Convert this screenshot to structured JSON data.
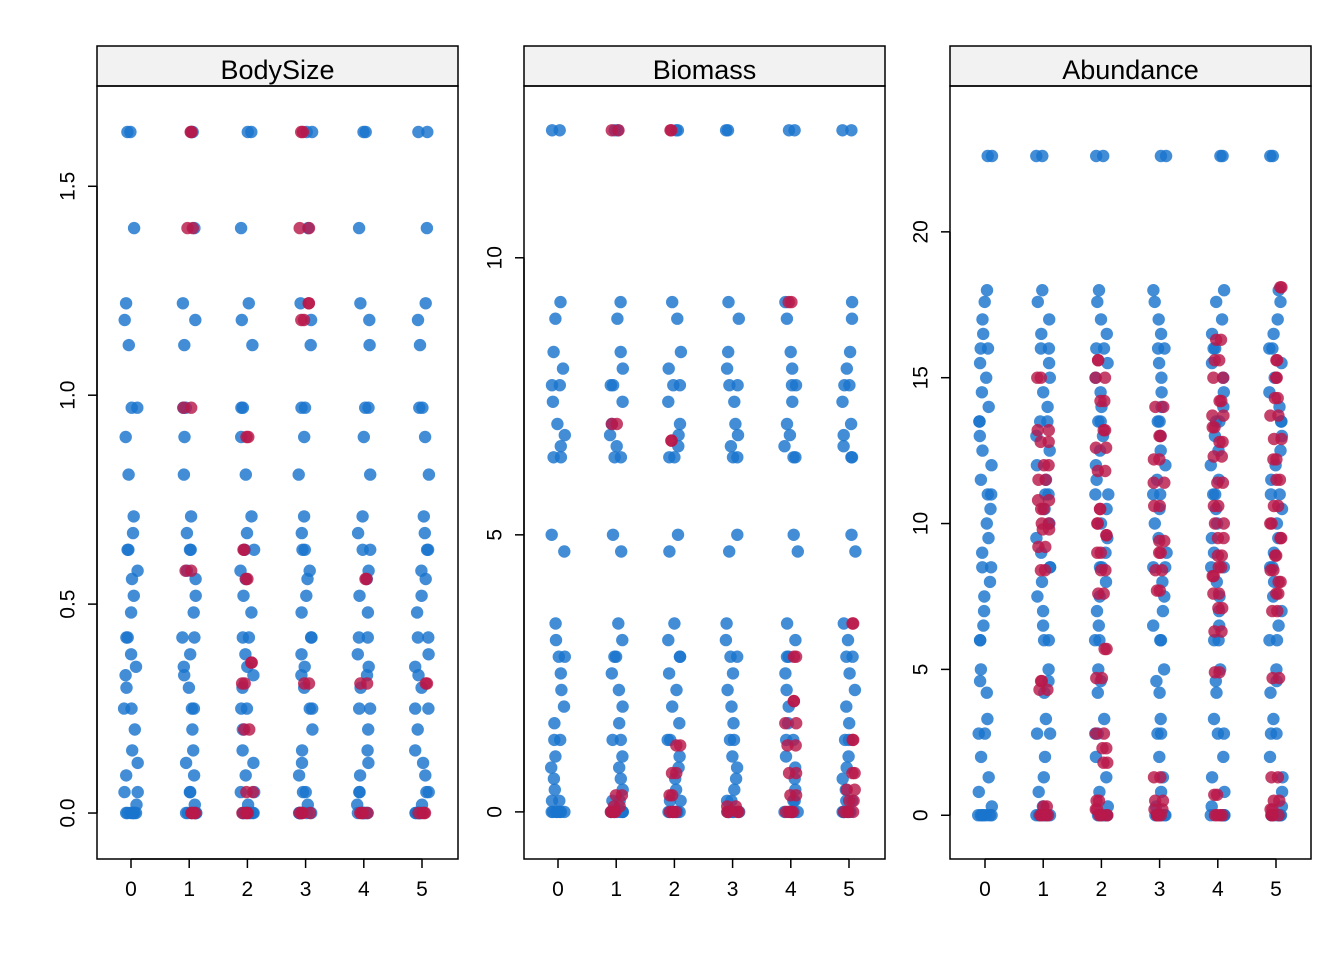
{
  "chart_data": [
    {
      "type": "scatter",
      "title": "BodySize",
      "x_ticks": [
        "0",
        "1",
        "2",
        "3",
        "4",
        "5"
      ],
      "y_ticks": [
        0.0,
        0.5,
        1.0,
        1.5
      ],
      "y_tick_labels": [
        "0.0",
        "0.5",
        "1.0",
        "1.5"
      ],
      "ylim": [
        -0.11,
        1.74
      ],
      "grid": false,
      "series": [
        {
          "color": "#1874CD",
          "levels": [
            1.63,
            1.4,
            1.22,
            1.18,
            1.12,
            0.97,
            0.9,
            0.81,
            0.71,
            0.67,
            0.63,
            0.58,
            0.56,
            0.52,
            0.48,
            0.42,
            0.38,
            0.35,
            0.33,
            0.3,
            0.25,
            0.2,
            0.15,
            0.12,
            0.09,
            0.05,
            0.02,
            0.0
          ]
        },
        {
          "color": "#B8184A",
          "points": [
            [
              1,
              1.63
            ],
            [
              1,
              1.4
            ],
            [
              1,
              0.97
            ],
            [
              1,
              0.58
            ],
            [
              1,
              0.0
            ],
            [
              2,
              0.9
            ],
            [
              2,
              0.63
            ],
            [
              2,
              0.56
            ],
            [
              2,
              0.36
            ],
            [
              2,
              0.31
            ],
            [
              2,
              0.2
            ],
            [
              2,
              0.05
            ],
            [
              2,
              0.0
            ],
            [
              3,
              1.63
            ],
            [
              3,
              1.4
            ],
            [
              3,
              1.22
            ],
            [
              3,
              1.18
            ],
            [
              3,
              0.31
            ],
            [
              3,
              0.0
            ],
            [
              4,
              0.56
            ],
            [
              4,
              0.31
            ],
            [
              4,
              0.0
            ],
            [
              5,
              0.31
            ],
            [
              5,
              0.0
            ]
          ]
        }
      ]
    },
    {
      "type": "scatter",
      "title": "Biomass",
      "x_ticks": [
        "0",
        "1",
        "2",
        "3",
        "4",
        "5"
      ],
      "y_ticks": [
        0,
        5,
        10
      ],
      "y_tick_labels": [
        "0",
        "5",
        "10"
      ],
      "ylim": [
        -0.85,
        13.1
      ],
      "grid": false,
      "series": [
        {
          "color": "#1874CD",
          "levels": [
            12.3,
            9.2,
            8.9,
            8.3,
            8.0,
            7.7,
            7.4,
            7.0,
            6.8,
            6.6,
            6.4,
            5.0,
            4.7,
            3.4,
            3.1,
            2.8,
            2.5,
            2.2,
            1.9,
            1.6,
            1.3,
            1.0,
            0.8,
            0.6,
            0.4,
            0.2,
            0.0
          ]
        },
        {
          "color": "#B8184A",
          "points": [
            [
              1,
              12.3
            ],
            [
              1,
              7.0
            ],
            [
              1,
              0.3
            ],
            [
              1,
              0.1
            ],
            [
              1,
              0.0
            ],
            [
              2,
              12.3
            ],
            [
              2,
              6.7
            ],
            [
              2,
              1.2
            ],
            [
              2,
              0.7
            ],
            [
              2,
              0.3
            ],
            [
              2,
              0.0
            ],
            [
              3,
              0.1
            ],
            [
              3,
              0.0
            ],
            [
              4,
              9.2
            ],
            [
              4,
              2.8
            ],
            [
              4,
              2.0
            ],
            [
              4,
              1.6
            ],
            [
              4,
              1.2
            ],
            [
              4,
              0.7
            ],
            [
              4,
              0.3
            ],
            [
              4,
              0.0
            ],
            [
              5,
              3.4
            ],
            [
              5,
              1.3
            ],
            [
              5,
              0.7
            ],
            [
              5,
              0.4
            ],
            [
              5,
              0.2
            ],
            [
              5,
              0.0
            ]
          ]
        }
      ]
    },
    {
      "type": "scatter",
      "title": "Abundance",
      "x_ticks": [
        "0",
        "1",
        "2",
        "3",
        "4",
        "5"
      ],
      "y_ticks": [
        0,
        5,
        10,
        15,
        20
      ],
      "y_tick_labels": [
        "0",
        "5",
        "10",
        "15",
        "20"
      ],
      "ylim": [
        -1.5,
        25.0
      ],
      "grid": false,
      "series": [
        {
          "color": "#1874CD",
          "levels": [
            22.6,
            18.0,
            17.6,
            17.0,
            16.5,
            16.0,
            15.5,
            15.0,
            14.5,
            14.0,
            13.5,
            13.0,
            12.5,
            12.0,
            11.5,
            11.0,
            10.5,
            10.0,
            9.5,
            9.0,
            8.5,
            8.0,
            7.5,
            7.0,
            6.5,
            6.0,
            5.0,
            4.6,
            4.2,
            3.3,
            2.8,
            2.0,
            1.3,
            0.8,
            0.3,
            0.0
          ]
        },
        {
          "color": "#B8184A",
          "points": [
            [
              1,
              15.0
            ],
            [
              1,
              13.2
            ],
            [
              1,
              12.8
            ],
            [
              1,
              12.0
            ],
            [
              1,
              11.5
            ],
            [
              1,
              10.8
            ],
            [
              1,
              10.5
            ],
            [
              1,
              10.0
            ],
            [
              1,
              9.8
            ],
            [
              1,
              9.2
            ],
            [
              1,
              8.4
            ],
            [
              1,
              4.6
            ],
            [
              1,
              4.3
            ],
            [
              1,
              0.3
            ],
            [
              1,
              0.0
            ],
            [
              2,
              15.6
            ],
            [
              2,
              15.0
            ],
            [
              2,
              14.2
            ],
            [
              2,
              13.2
            ],
            [
              2,
              12.6
            ],
            [
              2,
              11.8
            ],
            [
              2,
              10.5
            ],
            [
              2,
              10.0
            ],
            [
              2,
              9.6
            ],
            [
              2,
              9.0
            ],
            [
              2,
              8.4
            ],
            [
              2,
              7.6
            ],
            [
              2,
              5.7
            ],
            [
              2,
              4.7
            ],
            [
              2,
              2.8
            ],
            [
              2,
              2.3
            ],
            [
              2,
              1.8
            ],
            [
              2,
              0.5
            ],
            [
              2,
              0.2
            ],
            [
              2,
              0.0
            ],
            [
              3,
              14.0
            ],
            [
              3,
              13.0
            ],
            [
              3,
              12.2
            ],
            [
              3,
              11.4
            ],
            [
              3,
              10.6
            ],
            [
              3,
              9.4
            ],
            [
              3,
              9.0
            ],
            [
              3,
              8.4
            ],
            [
              3,
              7.7
            ],
            [
              3,
              1.3
            ],
            [
              3,
              0.5
            ],
            [
              3,
              0.2
            ],
            [
              3,
              0.0
            ],
            [
              4,
              16.3
            ],
            [
              4,
              15.6
            ],
            [
              4,
              15.0
            ],
            [
              4,
              14.2
            ],
            [
              4,
              13.7
            ],
            [
              4,
              13.3
            ],
            [
              4,
              12.8
            ],
            [
              4,
              12.3
            ],
            [
              4,
              11.4
            ],
            [
              4,
              10.6
            ],
            [
              4,
              10.0
            ],
            [
              4,
              9.5
            ],
            [
              4,
              8.9
            ],
            [
              4,
              8.5
            ],
            [
              4,
              8.2
            ],
            [
              4,
              7.6
            ],
            [
              4,
              7.1
            ],
            [
              4,
              6.3
            ],
            [
              4,
              4.9
            ],
            [
              4,
              0.7
            ],
            [
              4,
              0.0
            ],
            [
              5,
              18.1
            ],
            [
              5,
              15.6
            ],
            [
              5,
              15.0
            ],
            [
              5,
              14.3
            ],
            [
              5,
              13.7
            ],
            [
              5,
              12.9
            ],
            [
              5,
              12.2
            ],
            [
              5,
              11.5
            ],
            [
              5,
              10.6
            ],
            [
              5,
              10.0
            ],
            [
              5,
              9.5
            ],
            [
              5,
              8.9
            ],
            [
              5,
              8.4
            ],
            [
              5,
              8.0
            ],
            [
              5,
              7.6
            ],
            [
              5,
              7.0
            ],
            [
              5,
              4.7
            ],
            [
              5,
              1.3
            ],
            [
              5,
              0.5
            ],
            [
              5,
              0.2
            ],
            [
              5,
              0.0
            ]
          ]
        }
      ]
    }
  ]
}
